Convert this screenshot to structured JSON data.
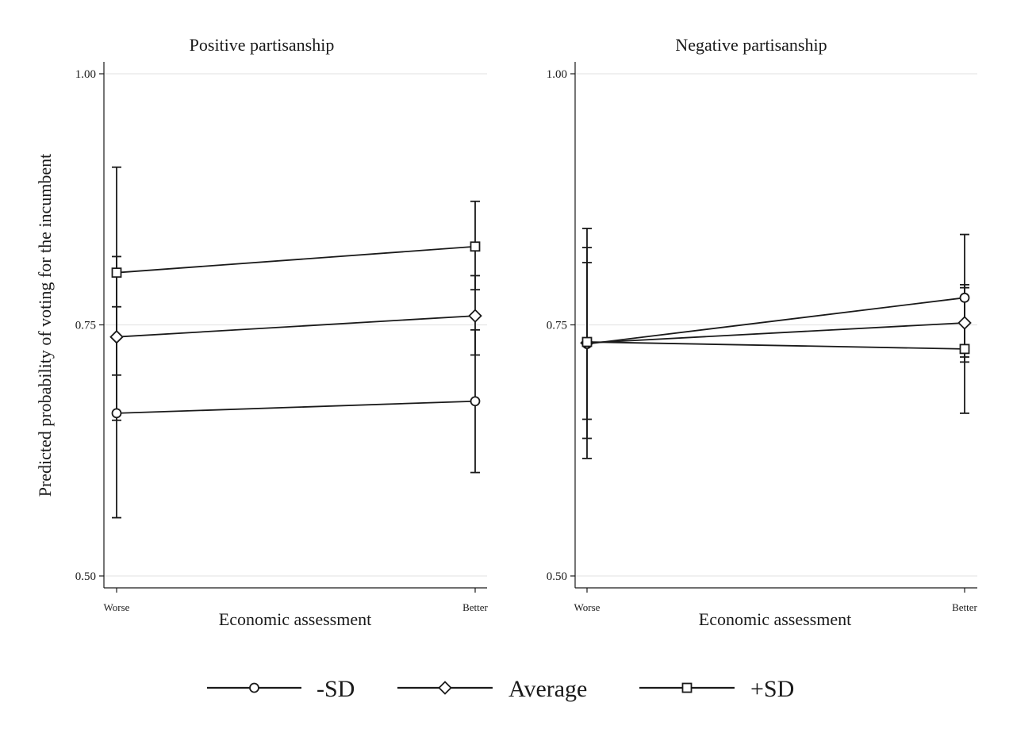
{
  "chart_data": {
    "type": "line",
    "ylabel": "Predicted probability of voting for the incumbent",
    "ylim": [
      0.5,
      1.0
    ],
    "yticks": [
      "0.50",
      "0.75",
      "1.00"
    ],
    "grid": true,
    "legend_position": "bottom",
    "series_names": [
      "-SD",
      "Average",
      "+SD"
    ],
    "series_markers": [
      "circle",
      "diamond",
      "square"
    ],
    "color": "#1a1a1a",
    "gridline_color": "#e6e6e6",
    "panels": [
      {
        "title": "Positive partisanship",
        "xlabel": "Economic assessment",
        "categories": [
          "Worse",
          "Better"
        ],
        "series": [
          {
            "name": "-SD",
            "marker": "circle",
            "values": [
              0.662,
              0.674
            ],
            "ci_low": [
              0.558,
              0.603
            ],
            "ci_high": [
              0.768,
              0.745
            ]
          },
          {
            "name": "Average",
            "marker": "diamond",
            "values": [
              0.738,
              0.759
            ],
            "ci_low": [
              0.655,
              0.72
            ],
            "ci_high": [
              0.818,
              0.799
            ]
          },
          {
            "name": "+SD",
            "marker": "square",
            "values": [
              0.802,
              0.828
            ],
            "ci_low": [
              0.7,
              0.785
            ],
            "ci_high": [
              0.907,
              0.873
            ]
          }
        ]
      },
      {
        "title": "Negative partisanship",
        "xlabel": "Economic assessment",
        "categories": [
          "Worse",
          "Better"
        ],
        "series": [
          {
            "name": "-SD",
            "marker": "circle",
            "values": [
              0.731,
              0.777
            ],
            "ci_low": [
              0.617,
              0.713
            ],
            "ci_high": [
              0.846,
              0.84
            ]
          },
          {
            "name": "Average",
            "marker": "diamond",
            "values": [
              0.732,
              0.752
            ],
            "ci_low": [
              0.637,
              0.718
            ],
            "ci_high": [
              0.827,
              0.787
            ]
          },
          {
            "name": "+SD",
            "marker": "square",
            "values": [
              0.733,
              0.726
            ],
            "ci_low": [
              0.656,
              0.662
            ],
            "ci_high": [
              0.812,
              0.79
            ]
          }
        ]
      }
    ]
  }
}
